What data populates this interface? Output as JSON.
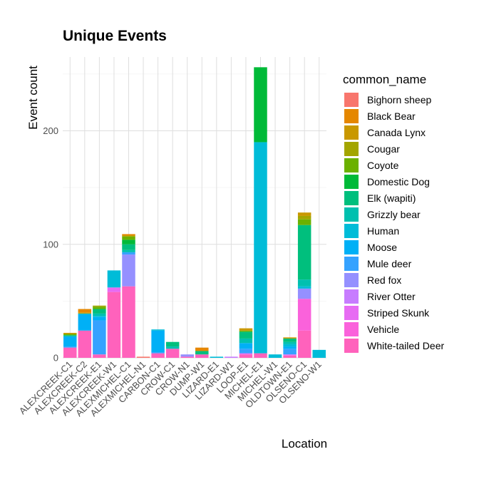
{
  "chart_data": {
    "type": "bar",
    "stacked": true,
    "title": "Unique Events",
    "xlabel": "Location",
    "ylabel": "Event count",
    "ylim": [
      0,
      260
    ],
    "yticks": [
      0,
      100,
      200
    ],
    "grid": true,
    "legend_position": "right",
    "legend_title": "common_name",
    "categories": [
      "ALEXCREEK-C1",
      "ALEXCREEK-C2",
      "ALEXCREEK-E1",
      "ALEXCREEK-W1",
      "ALEXMICHEL-C1",
      "ALEXMICHEL-N1",
      "CARBON-C1",
      "CROW-C1",
      "CROW-N1",
      "DUMP-W1",
      "LIZARD-E1",
      "LIZARD-W1",
      "LOOP-E1",
      "MICHEL-E1",
      "MICHEL-W1",
      "OLDTOWN-E1",
      "OLSENO-C1",
      "OLSENO-W1"
    ],
    "series": [
      {
        "name": "Bighorn sheep",
        "color": "#F8766D",
        "values": [
          0,
          0,
          0,
          0,
          0,
          1,
          0,
          0,
          0,
          0,
          0,
          0,
          0,
          0,
          0,
          0,
          0,
          0
        ]
      },
      {
        "name": "Black Bear",
        "color": "#E58700",
        "values": [
          0,
          3,
          0,
          0,
          1,
          0,
          0,
          0,
          0,
          3,
          0,
          0,
          0,
          0,
          0,
          0,
          0,
          0
        ]
      },
      {
        "name": "Canada Lynx",
        "color": "#C99800",
        "values": [
          1,
          1,
          0,
          0,
          1,
          0,
          0,
          0,
          0,
          0,
          0,
          0,
          2,
          0,
          0,
          1,
          3,
          0
        ]
      },
      {
        "name": "Cougar",
        "color": "#A3A500",
        "values": [
          0,
          0,
          1,
          0,
          0,
          0,
          0,
          0,
          0,
          0,
          0,
          0,
          0,
          0,
          0,
          0,
          3,
          0
        ]
      },
      {
        "name": "Coyote",
        "color": "#6BB100",
        "values": [
          1,
          0,
          2,
          0,
          3,
          0,
          0,
          0,
          0,
          0,
          0,
          0,
          1,
          0,
          0,
          0,
          5,
          0
        ]
      },
      {
        "name": "Domestic Dog",
        "color": "#00BA38",
        "values": [
          0,
          0,
          0,
          0,
          4,
          0,
          0,
          0,
          0,
          0,
          0,
          0,
          0,
          66,
          0,
          0,
          0,
          0
        ]
      },
      {
        "name": "Elk (wapiti)",
        "color": "#00BF7D",
        "values": [
          1,
          0,
          4,
          0,
          5,
          0,
          0,
          4,
          0,
          3,
          0,
          0,
          6,
          0,
          0,
          3,
          48,
          0
        ]
      },
      {
        "name": "Grizzly bear",
        "color": "#00C0AF",
        "values": [
          0,
          0,
          2,
          0,
          2,
          0,
          0,
          2,
          0,
          0,
          0,
          0,
          4,
          0,
          0,
          2,
          6,
          0
        ]
      },
      {
        "name": "Human",
        "color": "#00BCD8",
        "values": [
          0,
          1,
          1,
          15,
          0,
          0,
          1,
          0,
          0,
          0,
          1,
          0,
          0,
          186,
          3,
          2,
          2,
          7
        ]
      },
      {
        "name": "Moose",
        "color": "#00B0F6",
        "values": [
          9,
          14,
          3,
          0,
          0,
          0,
          19,
          0,
          0,
          0,
          0,
          0,
          5,
          0,
          0,
          2,
          0,
          0
        ]
      },
      {
        "name": "Mule deer",
        "color": "#35A2FF",
        "values": [
          1,
          0,
          30,
          0,
          2,
          0,
          1,
          0,
          0,
          0,
          0,
          0,
          4,
          0,
          0,
          5,
          0,
          0
        ]
      },
      {
        "name": "Red fox",
        "color": "#9590FF",
        "values": [
          0,
          0,
          0,
          0,
          28,
          0,
          0,
          0,
          2,
          0,
          0,
          0,
          0,
          0,
          0,
          0,
          9,
          0
        ]
      },
      {
        "name": "River Otter",
        "color": "#C77CFF",
        "values": [
          0,
          0,
          0,
          0,
          0,
          0,
          0,
          0,
          0,
          0,
          0,
          1,
          0,
          0,
          0,
          0,
          0,
          0
        ]
      },
      {
        "name": "Striped Skunk",
        "color": "#E76BF3",
        "values": [
          0,
          0,
          0,
          4,
          0,
          0,
          0,
          0,
          0,
          0,
          0,
          0,
          1,
          0,
          0,
          1,
          0,
          0
        ]
      },
      {
        "name": "Vehicle",
        "color": "#FA62DB",
        "values": [
          0,
          0,
          0,
          0,
          0,
          0,
          0,
          0,
          0,
          0,
          0,
          0,
          0,
          0,
          0,
          0,
          28,
          0
        ]
      },
      {
        "name": "White-tailed Deer",
        "color": "#FF62BC",
        "values": [
          9,
          24,
          3,
          58,
          63,
          0,
          4,
          8,
          1,
          3,
          0,
          0,
          3,
          4,
          0,
          2,
          24,
          0
        ]
      }
    ]
  }
}
